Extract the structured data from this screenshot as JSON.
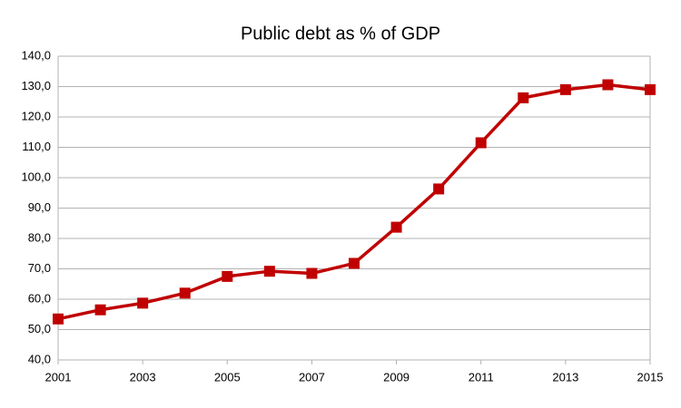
{
  "chart_data": {
    "type": "line",
    "title": "Public debt as % of GDP",
    "x": [
      2001,
      2002,
      2003,
      2004,
      2005,
      2006,
      2007,
      2008,
      2009,
      2010,
      2011,
      2012,
      2013,
      2014,
      2015
    ],
    "values": [
      53.5,
      56.5,
      58.7,
      62,
      67.5,
      69.2,
      68.5,
      71.8,
      83.7,
      96.3,
      111.5,
      126.3,
      129,
      130.6,
      129
    ],
    "color": "#c00000",
    "xlim": [
      2001,
      2015
    ],
    "xticks": [
      2001,
      2003,
      2005,
      2007,
      2009,
      2011,
      2013,
      2015
    ],
    "ylim": [
      40,
      140
    ],
    "yticks": [
      {
        "value": 40,
        "label": "40,0"
      },
      {
        "value": 50,
        "label": "50,0"
      },
      {
        "value": 60,
        "label": "60,0"
      },
      {
        "value": 70,
        "label": "70,0"
      },
      {
        "value": 80,
        "label": "80,0"
      },
      {
        "value": 90,
        "label": "90,0"
      },
      {
        "value": 100,
        "label": "100,0"
      },
      {
        "value": 110,
        "label": "110,0"
      },
      {
        "value": 120,
        "label": "120,0"
      },
      {
        "value": 130,
        "label": "130,0"
      },
      {
        "value": 140,
        "label": "140,0"
      }
    ],
    "grid": true
  }
}
